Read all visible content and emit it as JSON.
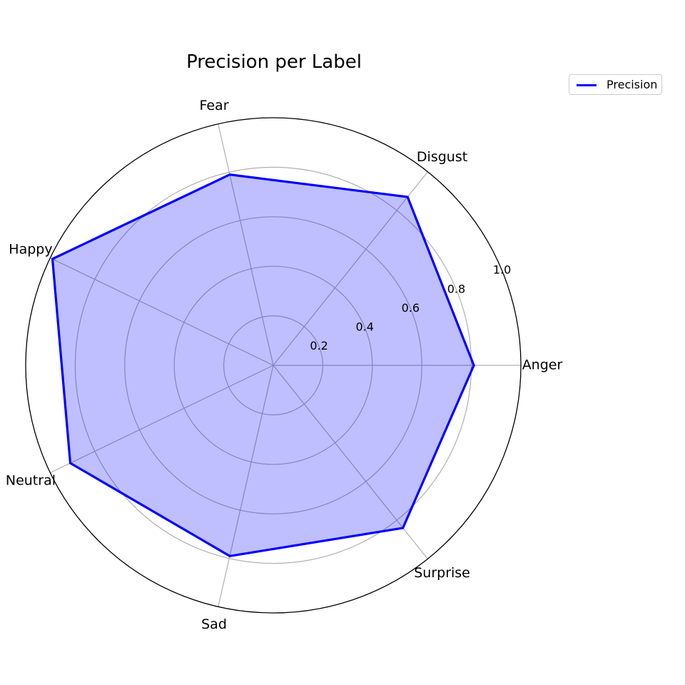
{
  "chart_data": {
    "type": "radar",
    "title": "Precision per Label",
    "categories": [
      "Anger",
      "Disgust",
      "Fear",
      "Happy",
      "Neutral",
      "Sad",
      "Surprise"
    ],
    "series": [
      {
        "name": "Precision",
        "values": [
          0.81,
          0.87,
          0.79,
          0.99,
          0.91,
          0.79,
          0.84
        ],
        "line_color": "#0000ff",
        "fill_color": "#0000ff",
        "fill_opacity": 0.25
      }
    ],
    "rlim": [
      0,
      1.0
    ],
    "radial_ticks": [
      "0.2",
      "0.4",
      "0.6",
      "0.8",
      "1.0"
    ],
    "radial_tick_values": [
      0.2,
      0.4,
      0.6,
      0.8,
      1.0
    ],
    "grid": true,
    "legend_position": "top-right"
  },
  "colors": {
    "grid": "#b0b0b0",
    "outer_ring": "#000000",
    "text": "#000000"
  }
}
